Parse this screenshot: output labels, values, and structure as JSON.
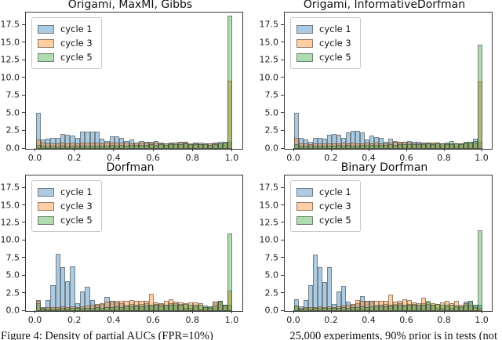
{
  "figure": {
    "caption_left": "Figure 4: Density of partial AUCs (FPR=10%)",
    "caption_right": "25,000 experiments, 90% prior is in tests (not"
  },
  "chart_data": {
    "type": "bar",
    "subtype": "overlaid-histograms",
    "layout": "2x2-grid",
    "bins": {
      "start": 0.0,
      "width": 0.025,
      "count": 40
    },
    "xlim": [
      -0.05,
      1.05
    ],
    "ylim": [
      0,
      19.3
    ],
    "xticks": [
      "0.0",
      "0.2",
      "0.4",
      "0.6",
      "0.8",
      "1.0"
    ],
    "yticks": [
      "0.0",
      "2.5",
      "5.0",
      "7.5",
      "10.0",
      "12.5",
      "15.0",
      "17.5"
    ],
    "grid": false,
    "legend_position": "upper-left",
    "legend": [
      "cycle 1",
      "cycle 3",
      "cycle 5"
    ],
    "colors": {
      "series_hex": [
        "#1f77b4",
        "#ff7f0e",
        "#2ca02c"
      ],
      "fill_alpha": 0.38,
      "edge": "#464646",
      "spine": "#3a3a3a"
    },
    "xlabel": "",
    "ylabel": "",
    "subplots": [
      {
        "title": "Origami, MaxMI, Gibbs",
        "series": [
          {
            "name": "cycle 1",
            "values": [
              5.1,
              1.3,
              1.4,
              1.5,
              1.6,
              2.1,
              2.0,
              1.9,
              1.6,
              2.4,
              2.4,
              2.4,
              2.45,
              1.4,
              1.1,
              1.75,
              1.8,
              1.55,
              1.1,
              1.35,
              0.9,
              1.1,
              1.0,
              1.05,
              1.1,
              0.9,
              0.8,
              0.85,
              0.9,
              1.0,
              0.95,
              0.7,
              0.9,
              0.85,
              0.75,
              0.8,
              0.85,
              0.95,
              1.0,
              1.0
            ]
          },
          {
            "name": "cycle 3",
            "values": [
              1.35,
              0.85,
              0.8,
              0.75,
              0.8,
              0.85,
              0.8,
              0.85,
              0.8,
              0.85,
              0.9,
              0.85,
              0.9,
              0.8,
              0.85,
              0.9,
              0.85,
              0.9,
              0.85,
              0.8,
              0.85,
              0.9,
              0.85,
              0.9,
              0.85,
              0.8,
              0.75,
              0.8,
              0.85,
              0.9,
              0.85,
              0.8,
              0.75,
              0.7,
              0.75,
              0.8,
              0.75,
              0.8,
              0.9,
              9.6
            ]
          },
          {
            "name": "cycle 5",
            "values": [
              0.55,
              0.4,
              0.35,
              0.4,
              0.35,
              0.4,
              0.35,
              0.4,
              0.45,
              0.5,
              0.45,
              0.5,
              0.45,
              0.4,
              0.5,
              0.55,
              0.5,
              0.55,
              0.5,
              0.55,
              0.6,
              0.55,
              0.6,
              0.65,
              0.6,
              0.65,
              0.6,
              0.65,
              0.7,
              0.65,
              0.75,
              0.7,
              0.65,
              0.7,
              0.65,
              0.6,
              0.7,
              0.8,
              0.9,
              18.85
            ]
          }
        ]
      },
      {
        "title": "Origami, InformativeDorfman",
        "series": [
          {
            "name": "cycle 1",
            "values": [
              5.1,
              1.6,
              1.3,
              0.95,
              1.5,
              1.6,
              1.45,
              2.0,
              2.1,
              2.0,
              1.5,
              2.3,
              2.5,
              2.5,
              2.3,
              1.3,
              1.85,
              1.7,
              1.6,
              1.05,
              1.4,
              1.1,
              0.95,
              1.0,
              1.1,
              0.95,
              1.0,
              0.9,
              0.85,
              0.8,
              0.75,
              0.8,
              0.85,
              0.8,
              0.75,
              0.8,
              0.9,
              0.95,
              1.4,
              1.0
            ]
          },
          {
            "name": "cycle 3",
            "values": [
              1.6,
              0.8,
              0.75,
              0.7,
              0.75,
              0.8,
              0.75,
              0.8,
              0.75,
              0.8,
              0.85,
              0.8,
              0.85,
              0.75,
              0.8,
              0.85,
              0.8,
              0.85,
              0.8,
              0.75,
              0.9,
              1.0,
              0.9,
              0.95,
              0.9,
              0.8,
              0.75,
              0.8,
              0.85,
              0.9,
              0.85,
              0.8,
              0.75,
              0.7,
              0.75,
              0.8,
              0.75,
              0.8,
              0.9,
              9.5
            ]
          },
          {
            "name": "cycle 5",
            "values": [
              0.7,
              0.45,
              0.4,
              0.45,
              0.4,
              0.45,
              0.4,
              0.45,
              0.5,
              0.55,
              0.5,
              0.55,
              0.5,
              0.45,
              0.55,
              0.6,
              0.55,
              0.6,
              0.55,
              0.6,
              0.65,
              0.6,
              0.65,
              0.7,
              0.65,
              0.7,
              0.65,
              0.7,
              0.8,
              0.7,
              0.85,
              0.8,
              0.7,
              1.15,
              0.75,
              0.65,
              1.0,
              1.05,
              1.1,
              14.7
            ]
          }
        ]
      },
      {
        "title": "Dorfman",
        "series": [
          {
            "name": "cycle 1",
            "values": [
              1.6,
              0.6,
              1.6,
              3.7,
              8.1,
              6.3,
              4.2,
              6.4,
              1.1,
              2.8,
              3.5,
              1.6,
              0.95,
              1.0,
              2.05,
              1.45,
              1.2,
              1.1,
              0.9,
              1.0,
              0.85,
              1.0,
              1.1,
              0.9,
              1.0,
              1.05,
              0.9,
              1.15,
              1.1,
              1.0,
              0.5,
              0.45,
              0.7,
              0.35,
              0.8,
              0.6,
              1.3,
              1.3,
              0.85,
              0.9
            ]
          },
          {
            "name": "cycle 3",
            "values": [
              1.5,
              0.5,
              0.6,
              0.55,
              0.6,
              0.65,
              0.6,
              0.65,
              0.6,
              0.7,
              0.8,
              0.9,
              1.0,
              1.1,
              1.3,
              1.5,
              1.4,
              1.5,
              1.45,
              1.6,
              1.5,
              1.45,
              1.4,
              2.45,
              1.2,
              1.1,
              1.5,
              1.7,
              1.3,
              1.2,
              1.1,
              1.2,
              1.25,
              1.1,
              0.6,
              0.5,
              1.3,
              1.5,
              0.8,
              2.9
            ]
          },
          {
            "name": "cycle 5",
            "values": [
              1.1,
              0.3,
              0.35,
              0.3,
              0.35,
              0.4,
              0.35,
              0.4,
              0.45,
              0.4,
              0.5,
              0.45,
              0.55,
              0.5,
              0.6,
              0.55,
              0.65,
              0.6,
              0.7,
              0.65,
              0.75,
              0.7,
              0.8,
              0.75,
              0.85,
              0.8,
              0.9,
              0.85,
              0.95,
              0.9,
              1.0,
              0.95,
              0.9,
              0.85,
              0.6,
              0.7,
              0.8,
              1.45,
              0.9,
              11.0
            ]
          }
        ]
      },
      {
        "title": "Binary Dorfman",
        "series": [
          {
            "name": "cycle 1",
            "values": [
              1.65,
              0.7,
              1.6,
              3.7,
              8.0,
              6.3,
              4.1,
              6.3,
              1.0,
              2.8,
              3.6,
              1.3,
              0.95,
              1.1,
              2.1,
              1.45,
              1.5,
              0.9,
              0.95,
              1.0,
              0.85,
              1.0,
              1.1,
              0.9,
              1.0,
              1.0,
              0.9,
              1.1,
              1.0,
              0.95,
              0.5,
              0.45,
              0.7,
              0.4,
              0.8,
              0.6,
              1.3,
              1.45,
              0.85,
              0.9
            ]
          },
          {
            "name": "cycle 3",
            "values": [
              0.8,
              0.5,
              0.6,
              0.55,
              0.6,
              0.65,
              0.6,
              0.65,
              0.6,
              0.7,
              0.8,
              0.9,
              1.0,
              1.6,
              1.5,
              1.5,
              1.4,
              1.45,
              1.4,
              1.5,
              2.35,
              1.3,
              1.4,
              1.65,
              1.6,
              1.2,
              1.1,
              1.9,
              1.2,
              1.1,
              1.0,
              1.2,
              1.45,
              1.1,
              1.4,
              0.9,
              1.1,
              0.8,
              0.6,
              0.5
            ]
          },
          {
            "name": "cycle 5",
            "values": [
              0.8,
              0.35,
              0.4,
              0.35,
              0.4,
              0.45,
              0.4,
              0.45,
              0.5,
              0.45,
              0.55,
              0.5,
              0.6,
              0.55,
              0.65,
              0.6,
              0.7,
              0.65,
              0.75,
              0.7,
              0.8,
              0.75,
              0.85,
              0.8,
              0.9,
              0.85,
              0.95,
              0.9,
              1.5,
              0.95,
              1.0,
              0.95,
              0.9,
              0.85,
              0.65,
              0.7,
              0.85,
              1.5,
              0.9,
              11.5
            ]
          }
        ]
      }
    ]
  }
}
